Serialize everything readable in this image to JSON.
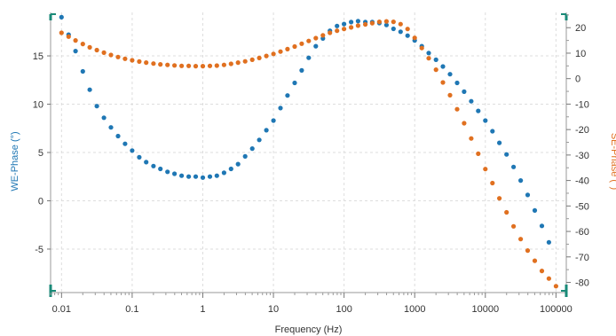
{
  "chart_data": {
    "type": "scatter",
    "title": "",
    "xlabel": "Frequency (Hz)",
    "x_scale": "log",
    "xlim": [
      0.007,
      140000
    ],
    "x_ticks": [
      0.01,
      0.1,
      1,
      10,
      100,
      1000,
      10000,
      100000
    ],
    "x_tick_labels": [
      "0.01",
      "0.1",
      "1",
      "10",
      "100",
      "1000",
      "10000",
      "100000"
    ],
    "y_left": {
      "label": "WE-Phase (°)",
      "color": "#1f77b4",
      "lim": [
        -9.5,
        19.5
      ],
      "ticks": [
        -5,
        0,
        5,
        10,
        15
      ],
      "tick_labels": [
        "-5",
        "0",
        "5",
        "10",
        "15"
      ]
    },
    "y_right": {
      "label": "SE-Phase (°)",
      "color": "#e07020",
      "lim": [
        -84,
        26
      ],
      "ticks": [
        -80,
        -70,
        -60,
        -50,
        -40,
        -30,
        -20,
        -10,
        0,
        10,
        20
      ],
      "tick_labels": [
        "-80",
        "-70",
        "-60",
        "-50",
        "-40",
        "-30",
        "-20",
        "-10",
        "0",
        "10",
        "20"
      ]
    },
    "grid": true,
    "series": [
      {
        "axis": "left",
        "color": "#1f77b4",
        "x": [
          0.01,
          0.0126,
          0.0158,
          0.02,
          0.0251,
          0.0316,
          0.0398,
          0.0501,
          0.0631,
          0.0794,
          0.1,
          0.126,
          0.158,
          0.2,
          0.251,
          0.316,
          0.398,
          0.501,
          0.631,
          0.794,
          1,
          1.26,
          1.58,
          2,
          2.51,
          3.16,
          3.98,
          5.01,
          6.31,
          7.94,
          10,
          12.6,
          15.8,
          20,
          25.1,
          31.6,
          39.8,
          50.1,
          63.1,
          79.4,
          100,
          126,
          158,
          200,
          251,
          316,
          398,
          501,
          631,
          794,
          1000,
          1260,
          1580,
          2000,
          2510,
          3160,
          3980,
          5010,
          6310,
          7940,
          10000,
          12600,
          15800,
          20000,
          25100,
          31600,
          39800,
          50100,
          63100,
          79400
        ],
        "y": [
          19,
          17.2,
          15.5,
          13.4,
          11.5,
          9.8,
          8.6,
          7.6,
          6.7,
          5.9,
          5.2,
          4.5,
          4.0,
          3.6,
          3.3,
          3.0,
          2.8,
          2.6,
          2.5,
          2.5,
          2.4,
          2.5,
          2.6,
          2.9,
          3.3,
          3.8,
          4.6,
          5.4,
          6.3,
          7.3,
          8.3,
          9.6,
          10.9,
          12.2,
          13.5,
          14.8,
          16.0,
          16.8,
          17.6,
          18.1,
          18.3,
          18.5,
          18.6,
          18.5,
          18.5,
          18.4,
          18.2,
          17.8,
          17.5,
          17.1,
          16.6,
          16.0,
          15.3,
          14.6,
          13.9,
          13.1,
          12.2,
          11.3,
          10.3,
          9.3,
          8.3,
          7.2,
          6.0,
          4.8,
          3.5,
          2.1,
          0.6,
          -1.0,
          -2.6,
          -4.3
        ]
      },
      {
        "axis": "right",
        "color": "#e07020",
        "x": [
          0.01,
          0.0126,
          0.0158,
          0.02,
          0.0251,
          0.0316,
          0.0398,
          0.0501,
          0.0631,
          0.0794,
          0.1,
          0.126,
          0.158,
          0.2,
          0.251,
          0.316,
          0.398,
          0.501,
          0.631,
          0.794,
          1,
          1.26,
          1.58,
          2,
          2.51,
          3.16,
          3.98,
          5.01,
          6.31,
          7.94,
          10,
          12.6,
          15.8,
          20,
          25.1,
          31.6,
          39.8,
          50.1,
          63.1,
          79.4,
          100,
          126,
          158,
          200,
          251,
          316,
          398,
          501,
          631,
          794,
          1000,
          1260,
          1580,
          2000,
          2510,
          3160,
          3980,
          5010,
          6310,
          7940,
          10000,
          12600,
          15800,
          20000,
          25100,
          31600,
          39800,
          50100,
          63100,
          79400,
          100000
        ],
        "y": [
          18,
          16.5,
          15.0,
          13.6,
          12.3,
          11.2,
          10.2,
          9.3,
          8.5,
          7.8,
          7.2,
          6.7,
          6.3,
          5.9,
          5.6,
          5.4,
          5.2,
          5.0,
          5.0,
          4.9,
          4.9,
          5.0,
          5.1,
          5.4,
          5.8,
          6.3,
          6.8,
          7.4,
          8.1,
          8.9,
          9.7,
          10.6,
          11.6,
          12.6,
          13.7,
          14.8,
          15.9,
          17.0,
          18.0,
          18.8,
          19.5,
          20.1,
          20.8,
          21.3,
          21.8,
          22.3,
          22.5,
          22.3,
          21.4,
          19.5,
          16.0,
          12.0,
          8.0,
          3.5,
          -1.5,
          -6.5,
          -12.0,
          -17.5,
          -23.5,
          -29.5,
          -35.5,
          -41.0,
          -47.0,
          -52.5,
          -58.0,
          -63.0,
          -67.5,
          -71.5,
          -75.5,
          -78.5,
          -81.5
        ]
      }
    ]
  }
}
